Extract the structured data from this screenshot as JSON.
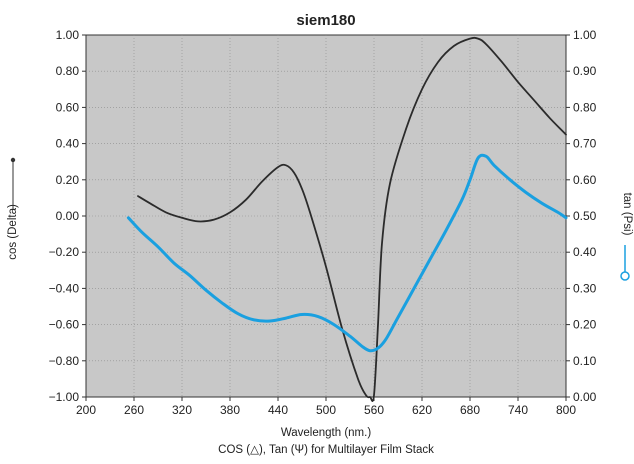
{
  "chart_data": {
    "type": "line",
    "title": "siem180",
    "xlabel": "Wavelength (nm.)",
    "caption": "COS (△), Tan (Ψ)  for Multilayer Film Stack",
    "ylabel_left": "cos (Delta)",
    "ylabel_right": "tan (Psi)",
    "xlim": [
      200,
      800
    ],
    "ylim_left": [
      -1.0,
      1.0
    ],
    "ylim_right": [
      0.0,
      1.0
    ],
    "x_ticks": [
      "200",
      "260",
      "320",
      "380",
      "440",
      "500",
      "560",
      "620",
      "680",
      "740",
      "800"
    ],
    "y_left_ticks": [
      "1.00",
      "0.80",
      "0.60",
      "0.40",
      "0.20",
      "0.00",
      "−0.20",
      "−0.40",
      "−0.60",
      "−0.80",
      "−1.00"
    ],
    "y_right_ticks": [
      "1.00",
      "0.90",
      "0.80",
      "0.70",
      "0.60",
      "0.50",
      "0.40",
      "0.30",
      "0.20",
      "0.10",
      "0.00"
    ],
    "grid": true,
    "plot_background": "#c8c8c8",
    "series": [
      {
        "axis": "left",
        "color": "#2b2b2b",
        "x": [
          265,
          280,
          300,
          320,
          340,
          360,
          380,
          400,
          420,
          440,
          450,
          460,
          470,
          480,
          500,
          520,
          540,
          550,
          555,
          560,
          565,
          570,
          580,
          600,
          620,
          640,
          660,
          680,
          690,
          700,
          720,
          740,
          760,
          780,
          800
        ],
        "y": [
          0.11,
          0.07,
          0.02,
          -0.01,
          -0.03,
          -0.02,
          0.02,
          0.09,
          0.19,
          0.27,
          0.28,
          0.24,
          0.15,
          0.02,
          -0.28,
          -0.62,
          -0.9,
          -0.99,
          -1.0,
          -0.99,
          -0.6,
          -0.15,
          0.18,
          0.48,
          0.7,
          0.85,
          0.94,
          0.98,
          0.98,
          0.95,
          0.85,
          0.74,
          0.64,
          0.54,
          0.45
        ]
      },
      {
        "axis": "right",
        "color": "#1aa0e0",
        "x": [
          253,
          270,
          290,
          310,
          330,
          350,
          370,
          390,
          410,
          430,
          450,
          470,
          490,
          510,
          530,
          545,
          555,
          565,
          575,
          590,
          610,
          630,
          650,
          670,
          680,
          690,
          700,
          710,
          730,
          750,
          770,
          790,
          800
        ],
        "y": [
          0.495,
          0.455,
          0.415,
          0.37,
          0.335,
          0.295,
          0.26,
          0.23,
          0.213,
          0.21,
          0.218,
          0.228,
          0.222,
          0.2,
          0.168,
          0.14,
          0.128,
          0.135,
          0.16,
          0.22,
          0.3,
          0.38,
          0.46,
          0.545,
          0.6,
          0.66,
          0.665,
          0.64,
          0.6,
          0.565,
          0.535,
          0.51,
          0.495
        ]
      }
    ]
  }
}
